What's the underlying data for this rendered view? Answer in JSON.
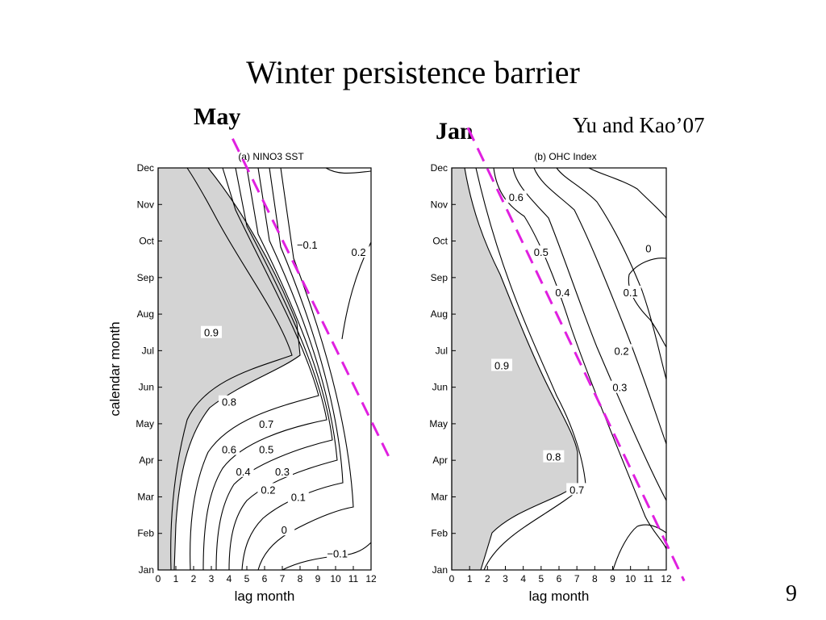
{
  "slide": {
    "title": "Winter persistence barrier",
    "label_left": "May",
    "label_right": "Jan",
    "citation": "Yu and Kao’07",
    "page_number": "9"
  },
  "colors": {
    "shade": "#d4d4d4",
    "contour": "#000000",
    "dashed_line": "#e020e0"
  },
  "chart_data": [
    {
      "type": "heatmap",
      "title": "(a) NINO3 SST",
      "xlabel": "lag month",
      "ylabel": "calendar month",
      "xlim": [
        0,
        12
      ],
      "x_ticks": [
        "0",
        "1",
        "2",
        "3",
        "4",
        "5",
        "6",
        "7",
        "8",
        "9",
        "10",
        "11",
        "12"
      ],
      "y_ticks": [
        "Jan",
        "Feb",
        "Mar",
        "Apr",
        "May",
        "Jun",
        "Jul",
        "Aug",
        "Sep",
        "Oct",
        "Nov",
        "Dec"
      ],
      "shaded_region": "correlation > 0.9",
      "contour_labels": [
        {
          "text": "0.9",
          "x": 3.0,
          "y": 6.5
        },
        {
          "text": "0.8",
          "x": 4.0,
          "y": 4.6
        },
        {
          "text": "0.7",
          "x": 6.1,
          "y": 4.0
        },
        {
          "text": "0.6",
          "x": 4.0,
          "y": 3.3
        },
        {
          "text": "0.5",
          "x": 6.1,
          "y": 3.3
        },
        {
          "text": "0.4",
          "x": 4.8,
          "y": 2.7
        },
        {
          "text": "0.3",
          "x": 7.0,
          "y": 2.7
        },
        {
          "text": "0.2",
          "x": 6.2,
          "y": 2.2
        },
        {
          "text": "0.1",
          "x": 7.9,
          "y": 2.0
        },
        {
          "text": "0",
          "x": 7.1,
          "y": 1.1
        },
        {
          "text": "−0.1",
          "x": 10.1,
          "y": 0.45
        },
        {
          "text": "−0.1",
          "x": 8.4,
          "y": 8.9
        },
        {
          "text": "0.2",
          "x": 11.3,
          "y": 8.7
        }
      ],
      "diagonal": {
        "label": "May",
        "x": [
          4.2,
          13.0
        ],
        "y": [
          11.8,
          3.1
        ]
      }
    },
    {
      "type": "heatmap",
      "title": "(b) OHC Index",
      "xlabel": "lag month",
      "ylabel": "",
      "xlim": [
        0,
        12
      ],
      "x_ticks": [
        "0",
        "1",
        "2",
        "3",
        "4",
        "5",
        "6",
        "7",
        "8",
        "9",
        "10",
        "11",
        "12"
      ],
      "y_ticks": [
        "Jan",
        "Feb",
        "Mar",
        "Apr",
        "May",
        "Jun",
        "Jul",
        "Aug",
        "Sep",
        "Oct",
        "Nov",
        "Dec"
      ],
      "shaded_region": "correlation > 0.9",
      "contour_labels": [
        {
          "text": "0.9",
          "x": 2.8,
          "y": 5.6
        },
        {
          "text": "0.8",
          "x": 5.7,
          "y": 3.1
        },
        {
          "text": "0.7",
          "x": 7.0,
          "y": 2.2
        },
        {
          "text": "0.6",
          "x": 3.6,
          "y": 10.2
        },
        {
          "text": "0.5",
          "x": 5.0,
          "y": 8.7
        },
        {
          "text": "0.4",
          "x": 6.2,
          "y": 7.6
        },
        {
          "text": "0.3",
          "x": 9.4,
          "y": 5.0
        },
        {
          "text": "0.2",
          "x": 9.5,
          "y": 6.0
        },
        {
          "text": "0.1",
          "x": 10.0,
          "y": 7.6
        },
        {
          "text": "0",
          "x": 11.0,
          "y": 8.8
        }
      ],
      "diagonal": {
        "label": "Jan",
        "x": [
          0.9,
          13.0
        ],
        "y": [
          12.1,
          -0.3
        ]
      }
    }
  ]
}
